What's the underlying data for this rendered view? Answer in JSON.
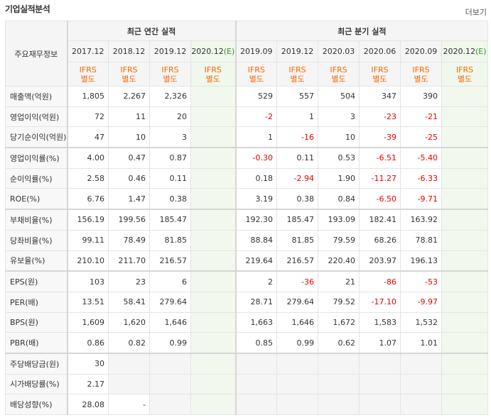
{
  "header": {
    "title": "기업실적분석",
    "more": "더보기"
  },
  "columns": {
    "corner": "주요재무정보",
    "annual_group": "최근 연간 실적",
    "quarter_group": "최근 분기 실적",
    "annual": [
      {
        "label": "2017.12",
        "est": false
      },
      {
        "label": "2018.12",
        "est": false
      },
      {
        "label": "2019.12",
        "est": false
      },
      {
        "label": "2020.12",
        "est": true
      }
    ],
    "quarter": [
      {
        "label": "2019.09",
        "est": false
      },
      {
        "label": "2019.12",
        "est": false
      },
      {
        "label": "2020.03",
        "est": false
      },
      {
        "label": "2020.06",
        "est": false
      },
      {
        "label": "2020.09",
        "est": false
      },
      {
        "label": "2020.12",
        "est": true
      }
    ],
    "est_mark": "(E)",
    "ifrs_line1": "IFRS",
    "ifrs_line2": "별도"
  },
  "rows": [
    {
      "label": "매출액(억원)",
      "values": [
        "1,805",
        "2,267",
        "2,326",
        "",
        "529",
        "557",
        "504",
        "347",
        "390",
        ""
      ]
    },
    {
      "label": "영업이익(억원)",
      "values": [
        "72",
        "11",
        "20",
        "",
        "-2",
        "1",
        "3",
        "-23",
        "-21",
        ""
      ]
    },
    {
      "label": "당기순이익(억원)",
      "values": [
        "47",
        "10",
        "3",
        "",
        "1",
        "-16",
        "10",
        "-39",
        "-25",
        ""
      ],
      "gb": true
    },
    {
      "label": "영업이익률(%)",
      "values": [
        "4.00",
        "0.47",
        "0.87",
        "",
        "-0.30",
        "0.11",
        "0.53",
        "-6.51",
        "-5.40",
        ""
      ]
    },
    {
      "label": "순이익률(%)",
      "values": [
        "2.58",
        "0.46",
        "0.11",
        "",
        "0.18",
        "-2.94",
        "1.90",
        "-11.27",
        "-6.33",
        ""
      ]
    },
    {
      "label": "ROE(%)",
      "values": [
        "6.76",
        "1.47",
        "0.38",
        "",
        "3.19",
        "0.38",
        "0.84",
        "-6.50",
        "-9.71",
        ""
      ],
      "gb": true
    },
    {
      "label": "부채비율(%)",
      "values": [
        "156.19",
        "199.56",
        "185.47",
        "",
        "192.30",
        "185.47",
        "193.09",
        "182.41",
        "163.92",
        ""
      ]
    },
    {
      "label": "당좌비율(%)",
      "values": [
        "99.11",
        "78.49",
        "81.85",
        "",
        "88.84",
        "81.85",
        "79.59",
        "68.26",
        "78.81",
        ""
      ]
    },
    {
      "label": "유보율(%)",
      "values": [
        "210.10",
        "211.70",
        "216.57",
        "",
        "219.64",
        "216.57",
        "220.40",
        "203.97",
        "196.13",
        ""
      ],
      "gb": true
    },
    {
      "label": "EPS(원)",
      "values": [
        "103",
        "23",
        "6",
        "",
        "2",
        "-36",
        "21",
        "-86",
        "-53",
        ""
      ]
    },
    {
      "label": "PER(배)",
      "values": [
        "13.51",
        "58.41",
        "279.64",
        "",
        "28.71",
        "279.64",
        "79.52",
        "-17.10",
        "-9.97",
        ""
      ]
    },
    {
      "label": "BPS(원)",
      "values": [
        "1,609",
        "1,620",
        "1,646",
        "",
        "1,663",
        "1,646",
        "1,672",
        "1,583",
        "1,532",
        ""
      ]
    },
    {
      "label": "PBR(배)",
      "values": [
        "0.86",
        "0.82",
        "0.99",
        "",
        "0.85",
        "0.99",
        "0.62",
        "1.07",
        "1.01",
        ""
      ],
      "gb": true
    },
    {
      "label": "주당배당금(원)",
      "values": [
        "30",
        "",
        "",
        "",
        "",
        "",
        "",
        "",
        "",
        ""
      ],
      "blank": true
    },
    {
      "label": "시가배당률(%)",
      "values": [
        "2.17",
        "",
        "",
        "",
        "",
        "",
        "",
        "",
        "",
        ""
      ],
      "blank": true
    },
    {
      "label": "배당성향(%)",
      "values": [
        "28.08",
        "-",
        "",
        "",
        "",
        "",
        "",
        "",
        "",
        ""
      ],
      "blank": true
    }
  ]
}
